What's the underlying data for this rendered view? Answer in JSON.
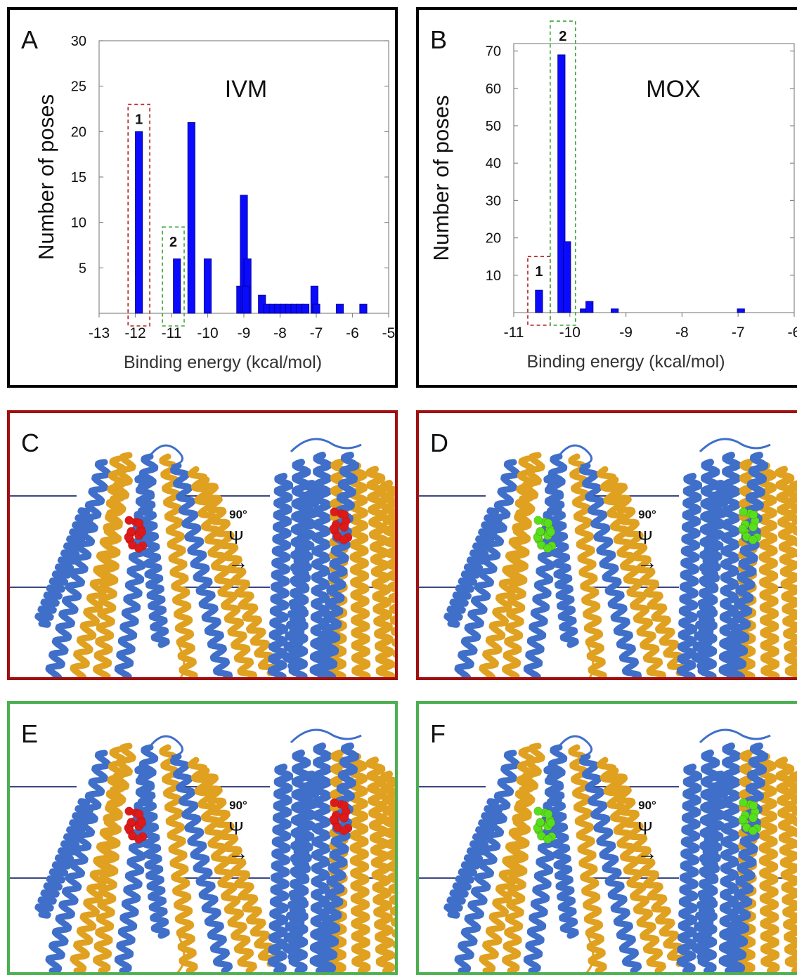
{
  "panels": {
    "A": {
      "label": "A",
      "border_color": "#000000"
    },
    "B": {
      "label": "B",
      "border_color": "#000000"
    },
    "C": {
      "label": "C",
      "border_color": "#a01010"
    },
    "D": {
      "label": "D",
      "border_color": "#a01010"
    },
    "E": {
      "label": "E",
      "border_color": "#4caf50"
    },
    "F": {
      "label": "F",
      "border_color": "#4caf50"
    }
  },
  "rotation": {
    "angle_label": "90°",
    "rot_glyph": "Ψ",
    "arrow": "→"
  },
  "colors": {
    "bar": "#0a0aff",
    "bar_edge": "#00007a",
    "box1": "#b22222",
    "box2": "#3ca63c",
    "helix_blue": "#3f6fc9",
    "helix_gold": "#e0a020",
    "ligand_red": "#dd1a1a",
    "ligand_green": "#55e01c",
    "membrane_line": "#1f2d6e"
  },
  "chart_data": [
    {
      "type": "bar",
      "panel": "A",
      "title": "IVM",
      "xlabel": "Binding energy (kcal/mol)",
      "ylabel": "Number of poses",
      "xlim": [
        -13,
        -5
      ],
      "ylim": [
        0,
        30
      ],
      "xticks": [
        "-13",
        "-12",
        "-11",
        "-10",
        "-9",
        "-8",
        "-7",
        "-6",
        "-5"
      ],
      "yticks": [
        "5",
        "10",
        "15",
        "20",
        "25",
        "30"
      ],
      "bar_width": 0.2,
      "bars": [
        {
          "x": -11.9,
          "value": 20
        },
        {
          "x": -10.85,
          "value": 6
        },
        {
          "x": -10.45,
          "value": 21
        },
        {
          "x": -10.0,
          "value": 6
        },
        {
          "x": -9.1,
          "value": 3
        },
        {
          "x": -9.0,
          "value": 13
        },
        {
          "x": -8.9,
          "value": 6
        },
        {
          "x": -8.95,
          "value": 3
        },
        {
          "x": -8.5,
          "value": 2
        },
        {
          "x": -8.35,
          "value": 1
        },
        {
          "x": -8.2,
          "value": 1
        },
        {
          "x": -8.05,
          "value": 1
        },
        {
          "x": -7.9,
          "value": 1
        },
        {
          "x": -7.75,
          "value": 1
        },
        {
          "x": -7.6,
          "value": 1
        },
        {
          "x": -7.45,
          "value": 1
        },
        {
          "x": -7.3,
          "value": 1
        },
        {
          "x": -7.05,
          "value": 3
        },
        {
          "x": -7.0,
          "value": 1
        },
        {
          "x": -6.35,
          "value": 1
        },
        {
          "x": -5.7,
          "value": 1
        }
      ],
      "annotations": [
        {
          "text": "1",
          "x_range": [
            -12.2,
            -11.6
          ],
          "y_top": 23,
          "color_key": "box1"
        },
        {
          "text": "2",
          "x_range": [
            -11.25,
            -10.65
          ],
          "y_top": 9.5,
          "color_key": "box2"
        }
      ]
    },
    {
      "type": "bar",
      "panel": "B",
      "title": "MOX",
      "xlabel": "Binding energy (kcal/mol)",
      "ylabel": "Number of poses",
      "xlim": [
        -11,
        -6
      ],
      "ylim": [
        0,
        72
      ],
      "xticks": [
        "-11",
        "-10",
        "-9",
        "-8",
        "-7",
        "-6"
      ],
      "yticks": [
        "10",
        "20",
        "30",
        "40",
        "50",
        "60",
        "70"
      ],
      "bar_width": 0.13,
      "bars": [
        {
          "x": -10.55,
          "value": 6
        },
        {
          "x": -10.15,
          "value": 69
        },
        {
          "x": -10.05,
          "value": 19
        },
        {
          "x": -9.75,
          "value": 1
        },
        {
          "x": -9.65,
          "value": 3
        },
        {
          "x": -9.2,
          "value": 1
        },
        {
          "x": -6.95,
          "value": 1
        }
      ],
      "annotations": [
        {
          "text": "1",
          "x_range": [
            -10.75,
            -10.35
          ],
          "y_top": 15,
          "color_key": "box1"
        },
        {
          "text": "2",
          "x_range": [
            -10.35,
            -9.9
          ],
          "y_top": 78,
          "color_key": "box2"
        }
      ]
    }
  ]
}
